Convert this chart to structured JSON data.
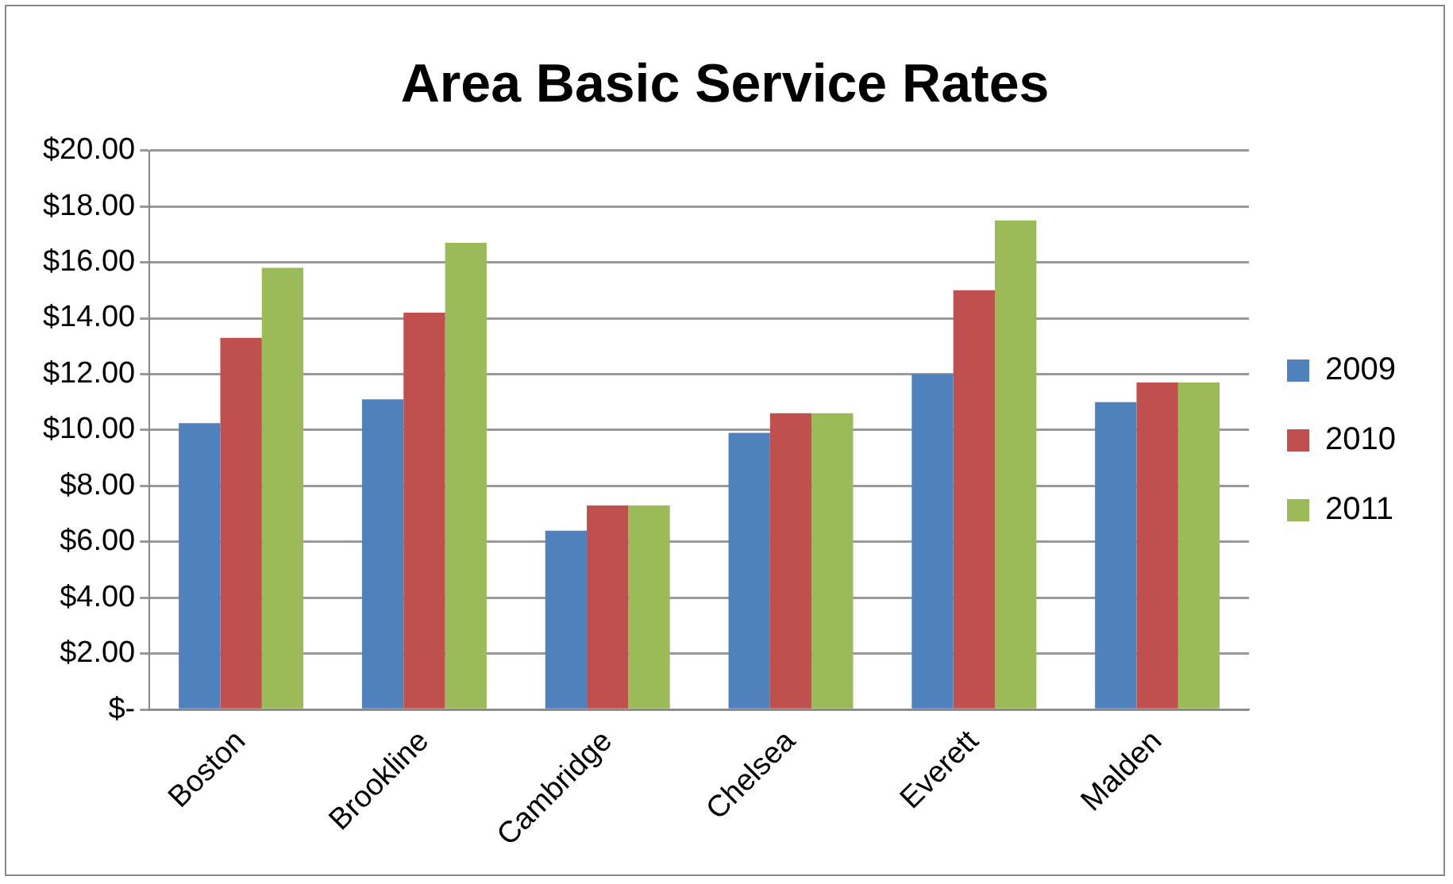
{
  "chart_data": {
    "type": "bar",
    "title": "Area Basic Service Rates",
    "categories": [
      "Boston",
      "Brookline",
      "Cambridge",
      "Chelsea",
      "Everett",
      "Malden"
    ],
    "series": [
      {
        "name": "2009",
        "color": "#4f81bd",
        "values": [
          10.25,
          11.1,
          6.4,
          9.9,
          12.0,
          11.0
        ]
      },
      {
        "name": "2010",
        "color": "#c0504d",
        "values": [
          13.3,
          14.2,
          7.3,
          10.6,
          15.0,
          11.7
        ]
      },
      {
        "name": "2011",
        "color": "#9bbb59",
        "values": [
          15.8,
          16.7,
          7.3,
          10.6,
          17.5,
          11.7
        ]
      }
    ],
    "ylim": [
      0,
      20
    ],
    "yticks": [
      {
        "value": 0,
        "label": "$-"
      },
      {
        "value": 2,
        "label": "$2.00"
      },
      {
        "value": 4,
        "label": "$4.00"
      },
      {
        "value": 6,
        "label": "$6.00"
      },
      {
        "value": 8,
        "label": "$8.00"
      },
      {
        "value": 10,
        "label": "$10.00"
      },
      {
        "value": 12,
        "label": "$12.00"
      },
      {
        "value": 14,
        "label": "$14.00"
      },
      {
        "value": 16,
        "label": "$16.00"
      },
      {
        "value": 18,
        "label": "$18.00"
      },
      {
        "value": 20,
        "label": "$20.00"
      }
    ],
    "grid": "y",
    "legend": "right"
  }
}
